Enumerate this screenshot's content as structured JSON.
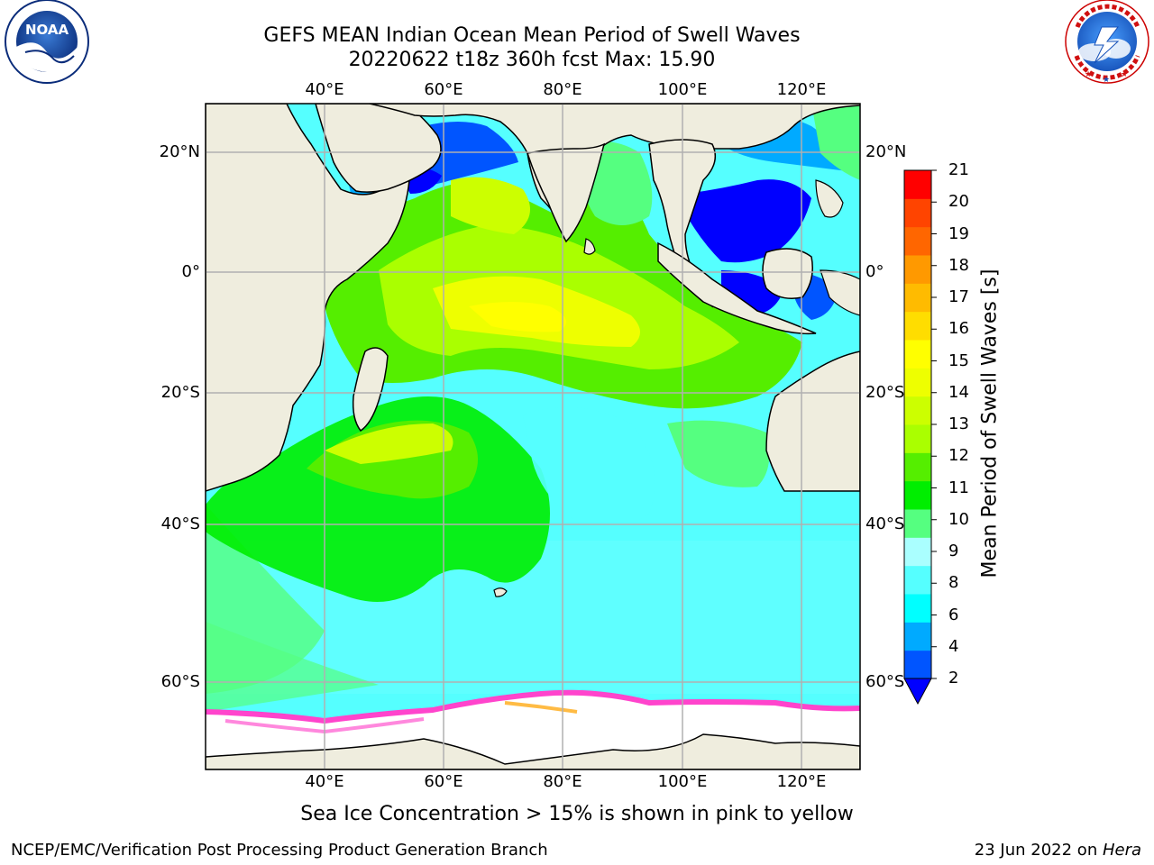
{
  "header": {
    "title_line1": "GEFS MEAN Indian Ocean Mean Period of Swell Waves",
    "title_line2": "20220622 t18z 360h fcst   Max: 15.90"
  },
  "logos": {
    "left": {
      "name": "NOAA",
      "text": "NOAA",
      "ring_text": "NATIONAL OCEANIC AND ATMOSPHERIC ADMINISTRATION · U.S. DEPARTMENT OF COMMERCE"
    },
    "right": {
      "name": "National Weather Service",
      "ring_text": "NATIONAL WEATHER SERVICE"
    }
  },
  "map": {
    "lon_range": [
      20,
      130
    ],
    "lat_range": [
      -72,
      28
    ],
    "top_lon_labels": [
      "40°E",
      "60°E",
      "80°E",
      "100°E",
      "120°E"
    ],
    "bottom_lon_labels": [
      "40°E",
      "60°E",
      "80°E",
      "100°E",
      "120°E"
    ],
    "left_lat_labels": [
      "20°N",
      "0°",
      "20°S",
      "40°S",
      "60°S"
    ],
    "right_lat_labels": [
      "20°N",
      "0°",
      "20°S",
      "40°S",
      "60°S"
    ],
    "land_color": "#efedde",
    "ocean_dominant": "#55ffff",
    "grid": true
  },
  "colorbar": {
    "title": "Mean Period of Swell Waves [s]",
    "tick_labels": [
      "21",
      "20",
      "19",
      "18",
      "17",
      "16",
      "15",
      "14",
      "13",
      "12",
      "11",
      "10",
      "9",
      "8",
      "6",
      "4",
      "2"
    ],
    "colors_low_to_high": [
      "#0055ff",
      "#00aaff",
      "#00ffff",
      "#55ffff",
      "#aaffff",
      "#55ff80",
      "#00ee00",
      "#55ee00",
      "#aaff00",
      "#ccff00",
      "#eeff00",
      "#ffff00",
      "#ffdd00",
      "#ffbb00",
      "#ff9900",
      "#ff6600",
      "#ff4400",
      "#ff0000"
    ],
    "extend_low_color": "#0000ff"
  },
  "notes": {
    "ice": "Sea Ice Concentration > 15% is shown in pink to yellow"
  },
  "footer": {
    "left": "NCEP/EMC/Verification Post Processing Product Generation Branch",
    "right_prefix": "23 Jun 2022 on ",
    "right_host": "Hera"
  }
}
